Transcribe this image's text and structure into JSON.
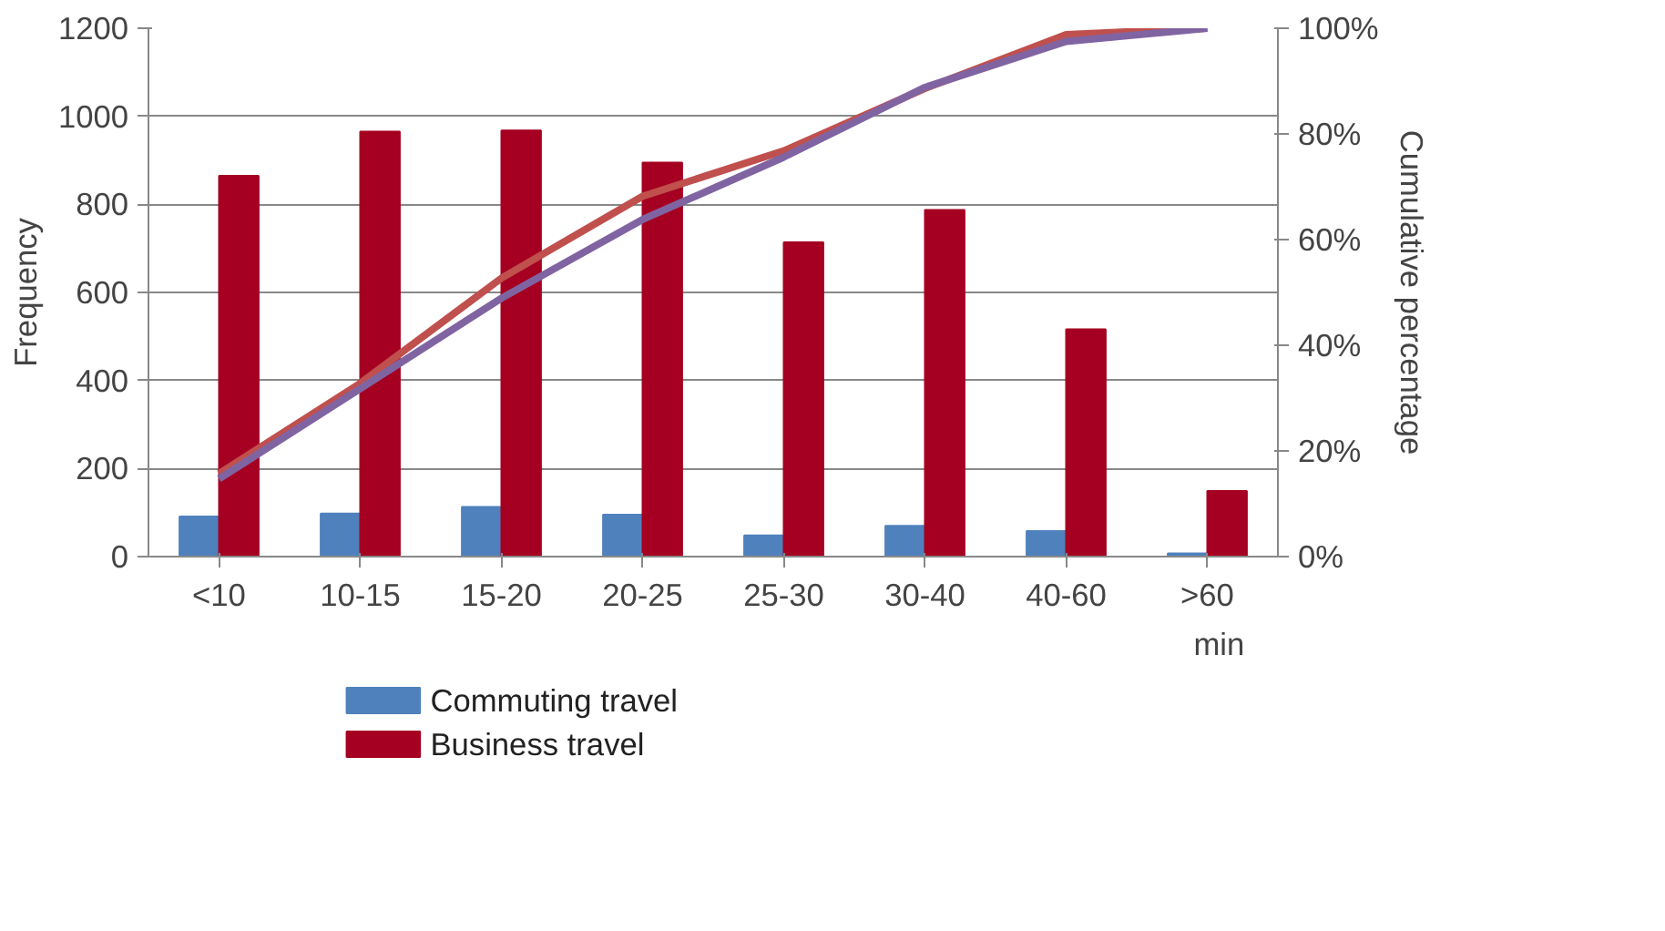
{
  "chart_data": {
    "type": "bar",
    "xlabel": "min",
    "ylabel": "Frequency",
    "y2label": "Cumulative percentage",
    "categories": [
      "<10",
      "10-15",
      "15-20",
      "20-25",
      "25-30",
      "30-40",
      "40-60",
      ">60"
    ],
    "series": [
      {
        "name": "Commuting travel",
        "color": "#4f81bd",
        "values": [
          91,
          98,
          113,
          95,
          48,
          70,
          58,
          7
        ]
      },
      {
        "name": "Business travel",
        "color": "#a50021",
        "values": [
          865,
          965,
          968,
          895,
          714,
          787,
          516,
          149
        ]
      },
      {
        "type": "line",
        "axis": "y2",
        "color": "#c0504d",
        "values": [
          15.7,
          32.8,
          52.7,
          68.2,
          76.8,
          88.6,
          98.8,
          100
        ]
      },
      {
        "type": "line",
        "axis": "y2",
        "color": "#8064a2",
        "values": [
          14.7,
          31.8,
          48.9,
          63.8,
          75.6,
          88.8,
          97.5,
          100
        ]
      }
    ],
    "ylim": [
      0,
      1200
    ],
    "yticks": [
      0,
      200,
      400,
      600,
      800,
      1000,
      1200
    ],
    "y2lim": [
      0,
      100
    ],
    "y2ticks": [
      {
        "value": 0,
        "label": "0%"
      },
      {
        "value": 20,
        "label": "20%"
      },
      {
        "value": 40,
        "label": "40%"
      },
      {
        "value": 60,
        "label": "60%"
      },
      {
        "value": 80,
        "label": "80%"
      },
      {
        "value": 100,
        "label": "100%"
      }
    ],
    "grid": "y",
    "legend": "bottom"
  }
}
